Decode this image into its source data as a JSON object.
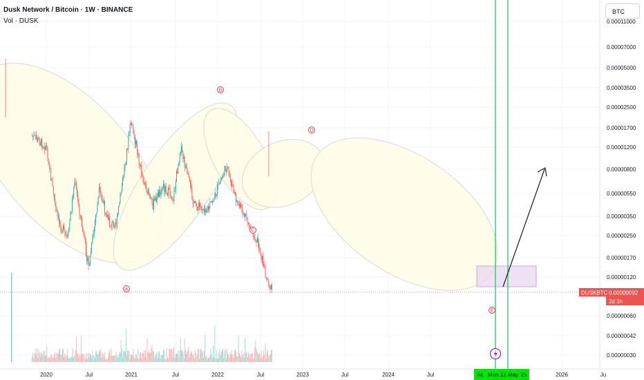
{
  "header": {
    "title": "Dusk Network / Bitcoin · 1W · BINANCE",
    "volume_label": "Vol · DUSK"
  },
  "currency_button": "BTC",
  "colors": {
    "up": "#26a69a",
    "down": "#ef5350",
    "ellipse_fill": "#fffde6",
    "ellipse_stroke": "#d9d9d0",
    "wave_label": "#f23645",
    "vline": "#22c55e",
    "box_fill": "#e7d7f0",
    "box_stroke": "#c9a6dc",
    "price_tag": "#ef5350",
    "time_tag": "#00e600",
    "flash_icon": "#9c27b0"
  },
  "chart_data": {
    "type": "candlestick",
    "price_scale": "log",
    "y_ticks": [
      "0.00011000",
      "0.00007000",
      "0.00005000",
      "0.00003500",
      "0.00002500",
      "0.00001700",
      "0.00001200",
      "0.00000800",
      "0.00000550",
      "0.00000350",
      "0.00000250",
      "0.00000170",
      "0.00000120",
      "0.00000092",
      "0.00000060",
      "0.00000042",
      "0.00000030"
    ],
    "x_ticks": [
      "2020",
      "Jul",
      "2021",
      "Jul",
      "2022",
      "Jul",
      "2023",
      "Jul",
      "2024",
      "Jul",
      "20",
      "Mon 12 May '25",
      "2026",
      "Ju"
    ],
    "wave_labels": [
      "A",
      "B",
      "C",
      "D",
      "E"
    ],
    "price_tag": {
      "symbol": "DUSKBTC",
      "value": "0.00000092",
      "countdown": "2d 3h"
    },
    "time_tag": "Mon 12 May '25",
    "tag_prefix": "Ac",
    "approx_path_points": [
      {
        "date": "2019-09",
        "price": 1.45e-05
      },
      {
        "date": "2020-01",
        "price": 1.2e-05
      },
      {
        "date": "2020-04",
        "price": 3.5e-06
      },
      {
        "date": "2020-07",
        "price": 2.3e-06
      },
      {
        "date": "2020-09",
        "price": 6.5e-06
      },
      {
        "date": "2020-10",
        "price": 4.5e-06
      },
      {
        "date": "2021-01",
        "price": 1.4e-06
      },
      {
        "date": "2021-04",
        "price": 5.5e-06
      },
      {
        "date": "2021-07",
        "price": 3e-06
      },
      {
        "date": "2021-09",
        "price": 3.2e-06
      },
      {
        "date": "2022-01",
        "price": 1.9e-05
      },
      {
        "date": "2022-04",
        "price": 7.5e-06
      },
      {
        "date": "2022-07",
        "price": 4.2e-06
      },
      {
        "date": "2022-10",
        "price": 6e-06
      },
      {
        "date": "2023-01",
        "price": 4.8e-06
      },
      {
        "date": "2023-03",
        "price": 1.2e-05
      },
      {
        "date": "2023-07",
        "price": 4.2e-06
      },
      {
        "date": "2023-11",
        "price": 4e-06
      },
      {
        "date": "2024-01",
        "price": 5.2e-06
      },
      {
        "date": "2024-04",
        "price": 8.5e-06
      },
      {
        "date": "2024-07",
        "price": 4.5e-06
      },
      {
        "date": "2024-10",
        "price": 3.2e-06
      },
      {
        "date": "2025-01",
        "price": 2.2e-06
      },
      {
        "date": "2025-03",
        "price": 1.3e-06
      },
      {
        "date": "2025-05",
        "price": 9.2e-07
      }
    ]
  }
}
